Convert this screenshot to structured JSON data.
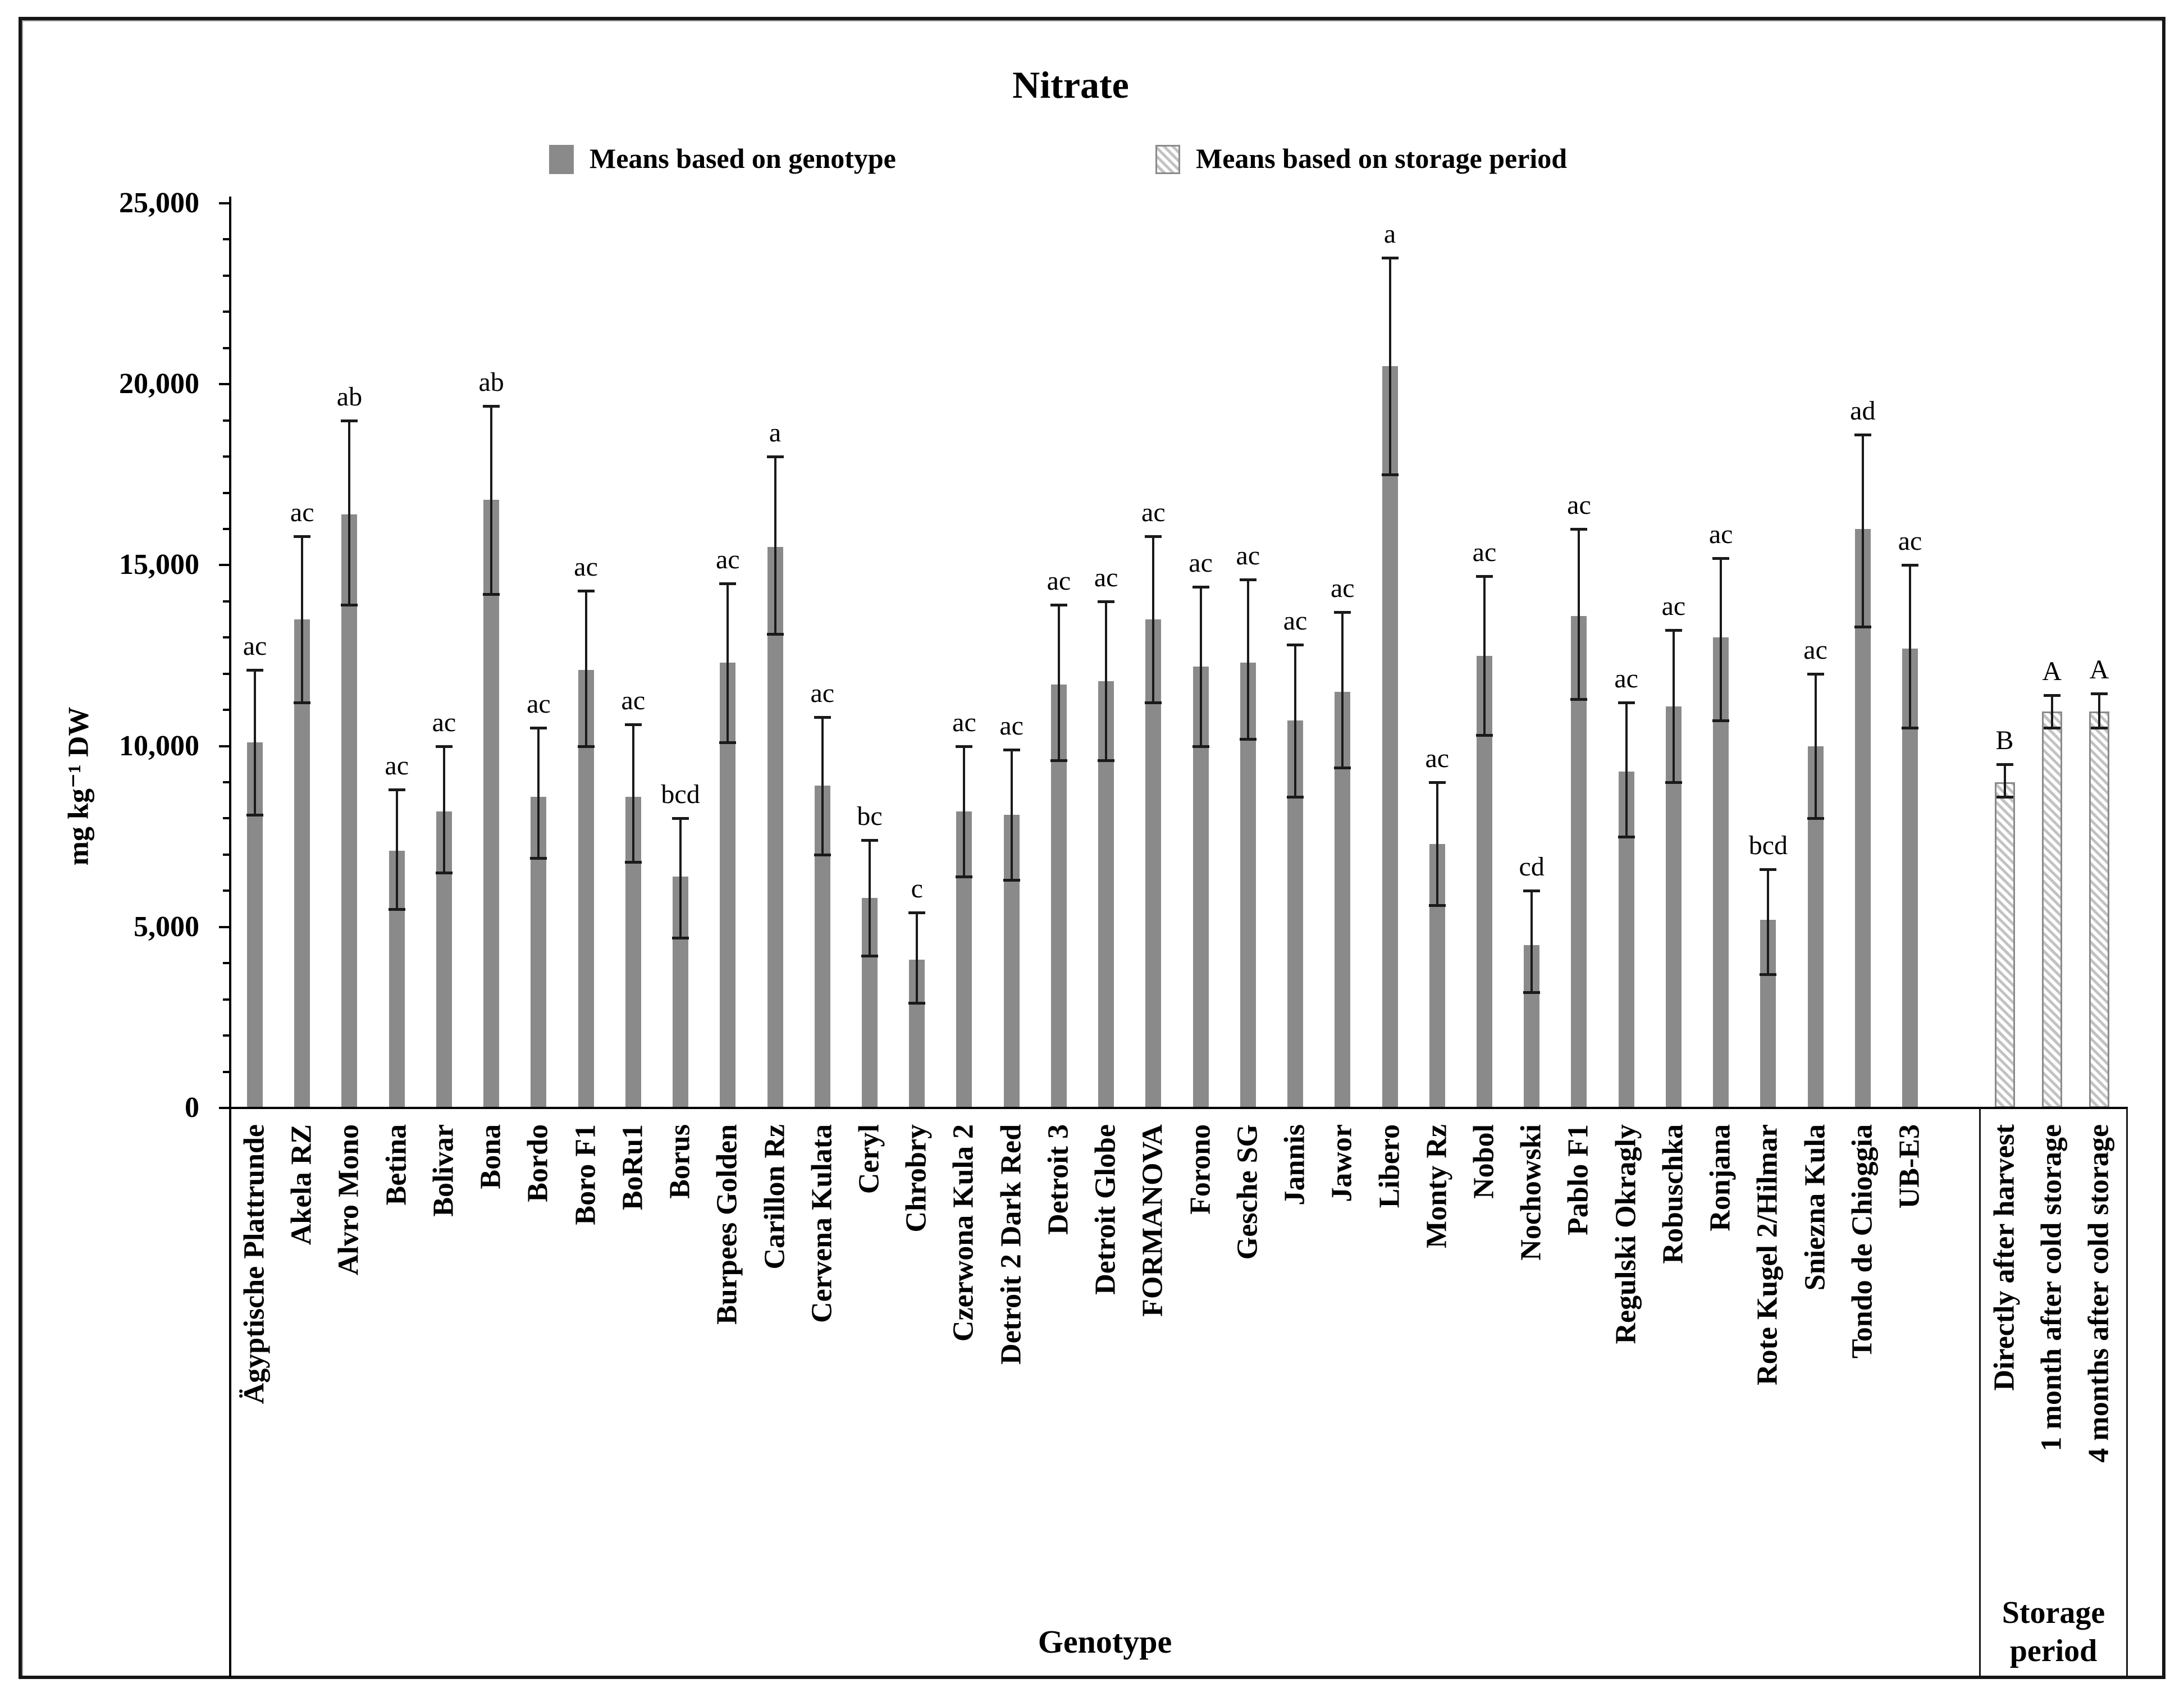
{
  "figure": {
    "title": "Nitrate"
  },
  "legend": {
    "items": [
      {
        "label": "Means based on genotype",
        "swatch": "solid-gray"
      },
      {
        "label": "Means based on storage period",
        "swatch": "hatched"
      }
    ]
  },
  "y_axis": {
    "label": "mg kg⁻¹ DW",
    "min": 0,
    "max": 25000,
    "major_step": 5000,
    "minor_step": 1000,
    "tick_labels": [
      "0",
      "5,000",
      "10,000",
      "15,000",
      "20,000",
      "25,000"
    ]
  },
  "x_axis": {
    "genotype_caption": "Genotype",
    "storage_caption_line1": "Storage",
    "storage_caption_line2": "period"
  },
  "colors": {
    "bar_fill": "#8a8a8a",
    "hatch_line": "#c2c2c2",
    "axis": "#000000"
  },
  "chart_data": {
    "type": "bar",
    "title": "Nitrate",
    "ylabel": "mg kg⁻¹ DW",
    "xlabel": "Genotype",
    "ylim": [
      0,
      25000
    ],
    "grid": false,
    "legend_position": "top",
    "error_bars": true,
    "series": [
      {
        "name": "Means based on genotype",
        "style": "solid",
        "bars": [
          {
            "label": "Ägyptische Plattrunde",
            "mean": 10100,
            "err_low": 8100,
            "err_high": 12100,
            "letter": "ac"
          },
          {
            "label": "Akela RZ",
            "mean": 13500,
            "err_low": 11200,
            "err_high": 15800,
            "letter": "ac"
          },
          {
            "label": "Alvro Mono",
            "mean": 16400,
            "err_low": 13900,
            "err_high": 19000,
            "letter": "ab"
          },
          {
            "label": "Betina",
            "mean": 7100,
            "err_low": 5500,
            "err_high": 8800,
            "letter": "ac"
          },
          {
            "label": "Bolivar",
            "mean": 8200,
            "err_low": 6500,
            "err_high": 10000,
            "letter": "ac"
          },
          {
            "label": "Bona",
            "mean": 16800,
            "err_low": 14200,
            "err_high": 19400,
            "letter": "ab"
          },
          {
            "label": "Bordo",
            "mean": 8600,
            "err_low": 6900,
            "err_high": 10500,
            "letter": "ac"
          },
          {
            "label": "Boro F1",
            "mean": 12100,
            "err_low": 10000,
            "err_high": 14300,
            "letter": "ac"
          },
          {
            "label": "BoRu1",
            "mean": 8600,
            "err_low": 6800,
            "err_high": 10600,
            "letter": "ac"
          },
          {
            "label": "Borus",
            "mean": 6400,
            "err_low": 4700,
            "err_high": 8000,
            "letter": "bcd"
          },
          {
            "label": "Burpees Golden",
            "mean": 12300,
            "err_low": 10100,
            "err_high": 14500,
            "letter": "ac"
          },
          {
            "label": "Carillon Rz",
            "mean": 15500,
            "err_low": 13100,
            "err_high": 18000,
            "letter": "a"
          },
          {
            "label": "Cervena Kulata",
            "mean": 8900,
            "err_low": 7000,
            "err_high": 10800,
            "letter": "ac"
          },
          {
            "label": "Ceryl",
            "mean": 5800,
            "err_low": 4200,
            "err_high": 7400,
            "letter": "bc"
          },
          {
            "label": "Chrobry",
            "mean": 4100,
            "err_low": 2900,
            "err_high": 5400,
            "letter": "c"
          },
          {
            "label": "Czerwona Kula 2",
            "mean": 8200,
            "err_low": 6400,
            "err_high": 10000,
            "letter": "ac"
          },
          {
            "label": "Detroit 2 Dark Red",
            "mean": 8100,
            "err_low": 6300,
            "err_high": 9900,
            "letter": "ac"
          },
          {
            "label": "Detroit 3",
            "mean": 11700,
            "err_low": 9600,
            "err_high": 13900,
            "letter": "ac"
          },
          {
            "label": "Detroit Globe",
            "mean": 11800,
            "err_low": 9600,
            "err_high": 14000,
            "letter": "ac"
          },
          {
            "label": "FORMANOVA",
            "mean": 13500,
            "err_low": 11200,
            "err_high": 15800,
            "letter": "ac"
          },
          {
            "label": "Forono",
            "mean": 12200,
            "err_low": 10000,
            "err_high": 14400,
            "letter": "ac"
          },
          {
            "label": "Gesche SG",
            "mean": 12300,
            "err_low": 10200,
            "err_high": 14600,
            "letter": "ac"
          },
          {
            "label": "Jannis",
            "mean": 10700,
            "err_low": 8600,
            "err_high": 12800,
            "letter": "ac"
          },
          {
            "label": "Jawor",
            "mean": 11500,
            "err_low": 9400,
            "err_high": 13700,
            "letter": "ac"
          },
          {
            "label": "Libero",
            "mean": 20500,
            "err_low": 17500,
            "err_high": 23500,
            "letter": "a"
          },
          {
            "label": "Monty Rz",
            "mean": 7300,
            "err_low": 5600,
            "err_high": 9000,
            "letter": "ac"
          },
          {
            "label": "Nobol",
            "mean": 12500,
            "err_low": 10300,
            "err_high": 14700,
            "letter": "ac"
          },
          {
            "label": "Nochowski",
            "mean": 4500,
            "err_low": 3200,
            "err_high": 6000,
            "letter": "cd"
          },
          {
            "label": "Pablo F1",
            "mean": 13600,
            "err_low": 11300,
            "err_high": 16000,
            "letter": "ac"
          },
          {
            "label": "Regulski Okragly",
            "mean": 9300,
            "err_low": 7500,
            "err_high": 11200,
            "letter": "ac"
          },
          {
            "label": "Robuschka",
            "mean": 11100,
            "err_low": 9000,
            "err_high": 13200,
            "letter": "ac"
          },
          {
            "label": "Ronjana",
            "mean": 13000,
            "err_low": 10700,
            "err_high": 15200,
            "letter": "ac"
          },
          {
            "label": "Rote Kugel 2/Hilmar",
            "mean": 5200,
            "err_low": 3700,
            "err_high": 6600,
            "letter": "bcd"
          },
          {
            "label": "Sniezna Kula",
            "mean": 10000,
            "err_low": 8000,
            "err_high": 12000,
            "letter": "ac"
          },
          {
            "label": "Tondo de Chioggia",
            "mean": 16000,
            "err_low": 13300,
            "err_high": 18600,
            "letter": "ad"
          },
          {
            "label": "UB-E3",
            "mean": 12700,
            "err_low": 10500,
            "err_high": 15000,
            "letter": "ac"
          }
        ]
      },
      {
        "name": "Means based on storage period",
        "style": "hatched",
        "bars": [
          {
            "label": "Directly after harvest",
            "mean": 9000,
            "err_low": 8600,
            "err_high": 9500,
            "letter": "B"
          },
          {
            "label": "1 month after cold storage",
            "mean": 10950,
            "err_low": 10500,
            "err_high": 11400,
            "letter": "A"
          },
          {
            "label": "4 months after cold storage",
            "mean": 10950,
            "err_low": 10500,
            "err_high": 11450,
            "letter": "A"
          }
        ]
      }
    ]
  }
}
